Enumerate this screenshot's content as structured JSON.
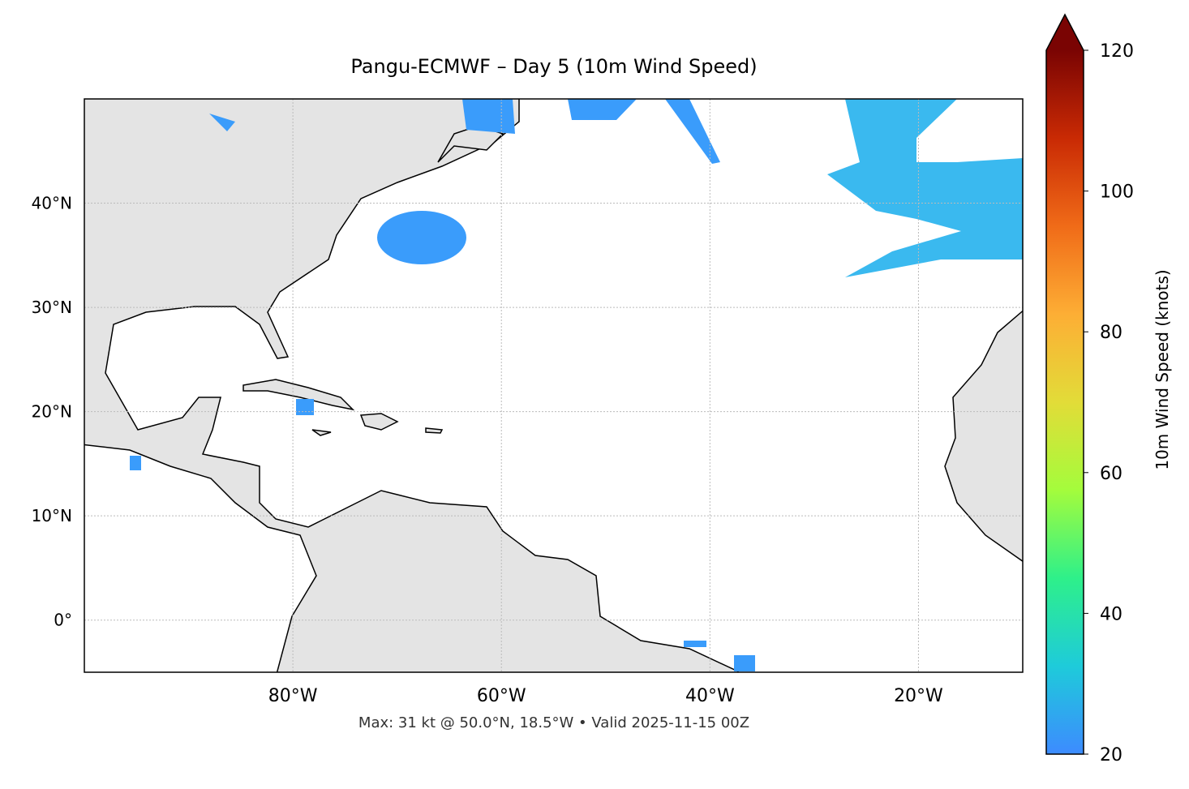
{
  "map": {
    "title": "Pangu-ECMWF – Day 5 (10m Wind Speed)",
    "note": "Max: 31 kt @ 50.0°N, 18.5°W • Valid 2025-11-15 00Z",
    "xlim": [
      -100,
      -10
    ],
    "ylim": [
      -5,
      50
    ],
    "xticks": [
      {
        "value": -80,
        "label": "80°W"
      },
      {
        "value": -60,
        "label": "60°W"
      },
      {
        "value": -40,
        "label": "40°W"
      },
      {
        "value": -20,
        "label": "20°W"
      }
    ],
    "yticks": [
      {
        "value": 0,
        "label": "0°"
      },
      {
        "value": 10,
        "label": "10°N"
      },
      {
        "value": 20,
        "label": "20°N"
      },
      {
        "value": 30,
        "label": "30°N"
      },
      {
        "value": 40,
        "label": "40°N"
      }
    ],
    "grid": true,
    "colorbar": {
      "label": "10m Wind Speed (knots)",
      "lim": [
        20,
        120
      ],
      "ticks": [
        20,
        40,
        60,
        80,
        100,
        120
      ],
      "colors": [
        "#3d8bff",
        "#1ecbda",
        "#2ef08a",
        "#a4fc3c",
        "#e2dc38",
        "#fdae35",
        "#f06b18",
        "#c92a04",
        "#7a0403"
      ]
    }
  }
}
